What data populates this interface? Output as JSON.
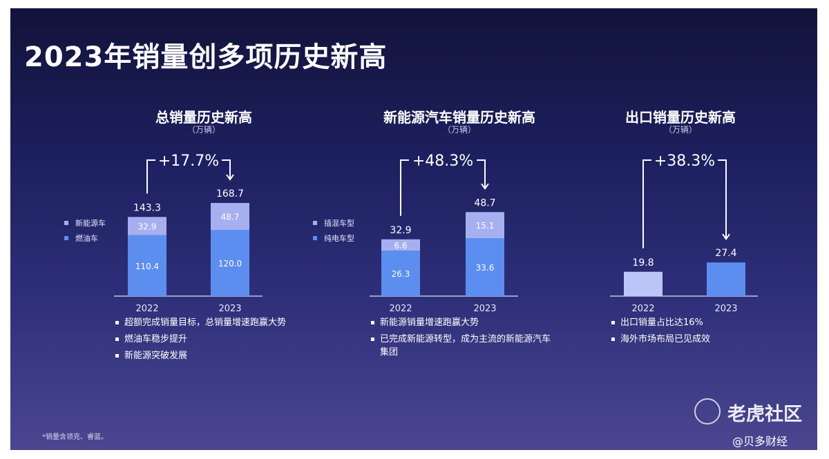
{
  "title": "2023年销量创多项历史新高",
  "panels": [
    {
      "title": "总销量历史新高",
      "unit": "（万辆）",
      "growth": "+17.7%",
      "legend": [
        {
          "label": "新能源车",
          "color": "#a6b0f0"
        },
        {
          "label": "燃油车",
          "color": "#5c8ef0"
        }
      ],
      "bullets": [
        "超额完成销量目标，总销量增速跑赢大势",
        "燃油车稳步提升",
        "新能源突破发展"
      ]
    },
    {
      "title": "新能源汽车销量历史新高",
      "unit": "（万辆）",
      "growth": "+48.3%",
      "legend": [
        {
          "label": "插混车型",
          "color": "#a6b0f0"
        },
        {
          "label": "纯电车型",
          "color": "#5c8ef0"
        }
      ],
      "bullets": [
        "新能源销量增速跑赢大势",
        "已完成新能源转型，成为主流的新能源汽车集团"
      ]
    },
    {
      "title": "出口销量历史新高",
      "unit": "（万辆）",
      "growth": "+38.3%",
      "legend": [],
      "bullets": [
        "出口销量占比达16%",
        "海外市场布局已见成效"
      ]
    }
  ],
  "chart_data": [
    {
      "type": "bar",
      "stacked": true,
      "title": "总销量历史新高",
      "ylabel": "万辆",
      "categories": [
        "2022",
        "2023"
      ],
      "totals": [
        "143.3",
        "168.7"
      ],
      "series": [
        {
          "name": "燃油车",
          "values": [
            110.4,
            120.0
          ],
          "labels": [
            "110.4",
            "120.0"
          ],
          "color": "#5c8ef0"
        },
        {
          "name": "新能源车",
          "values": [
            32.9,
            48.7
          ],
          "labels": [
            "32.9",
            "48.7"
          ],
          "color": "#a6b0f0"
        }
      ]
    },
    {
      "type": "bar",
      "stacked": true,
      "title": "新能源汽车销量历史新高",
      "ylabel": "万辆",
      "categories": [
        "2022",
        "2023"
      ],
      "totals": [
        "32.9",
        "48.7"
      ],
      "series": [
        {
          "name": "纯电车型",
          "values": [
            26.3,
            33.6
          ],
          "labels": [
            "26.3",
            "33.6"
          ],
          "color": "#5c8ef0"
        },
        {
          "name": "插混车型",
          "values": [
            6.6,
            15.1
          ],
          "labels": [
            "6.6",
            "15.1"
          ],
          "color": "#a6b0f0"
        }
      ]
    },
    {
      "type": "bar",
      "stacked": false,
      "title": "出口销量历史新高",
      "ylabel": "万辆",
      "categories": [
        "2022",
        "2023"
      ],
      "totals": [
        "19.8",
        "27.4"
      ],
      "series": [
        {
          "values": [
            19.8,
            27.4
          ],
          "labels": [
            "",
            ""
          ],
          "colors": [
            "#bcc5f7",
            "#5c8ef0"
          ]
        }
      ]
    }
  ],
  "footnote": "*销量含领克、睿蓝。",
  "watermarks": {
    "brand": "老虎社区",
    "source": "@贝多财经"
  }
}
